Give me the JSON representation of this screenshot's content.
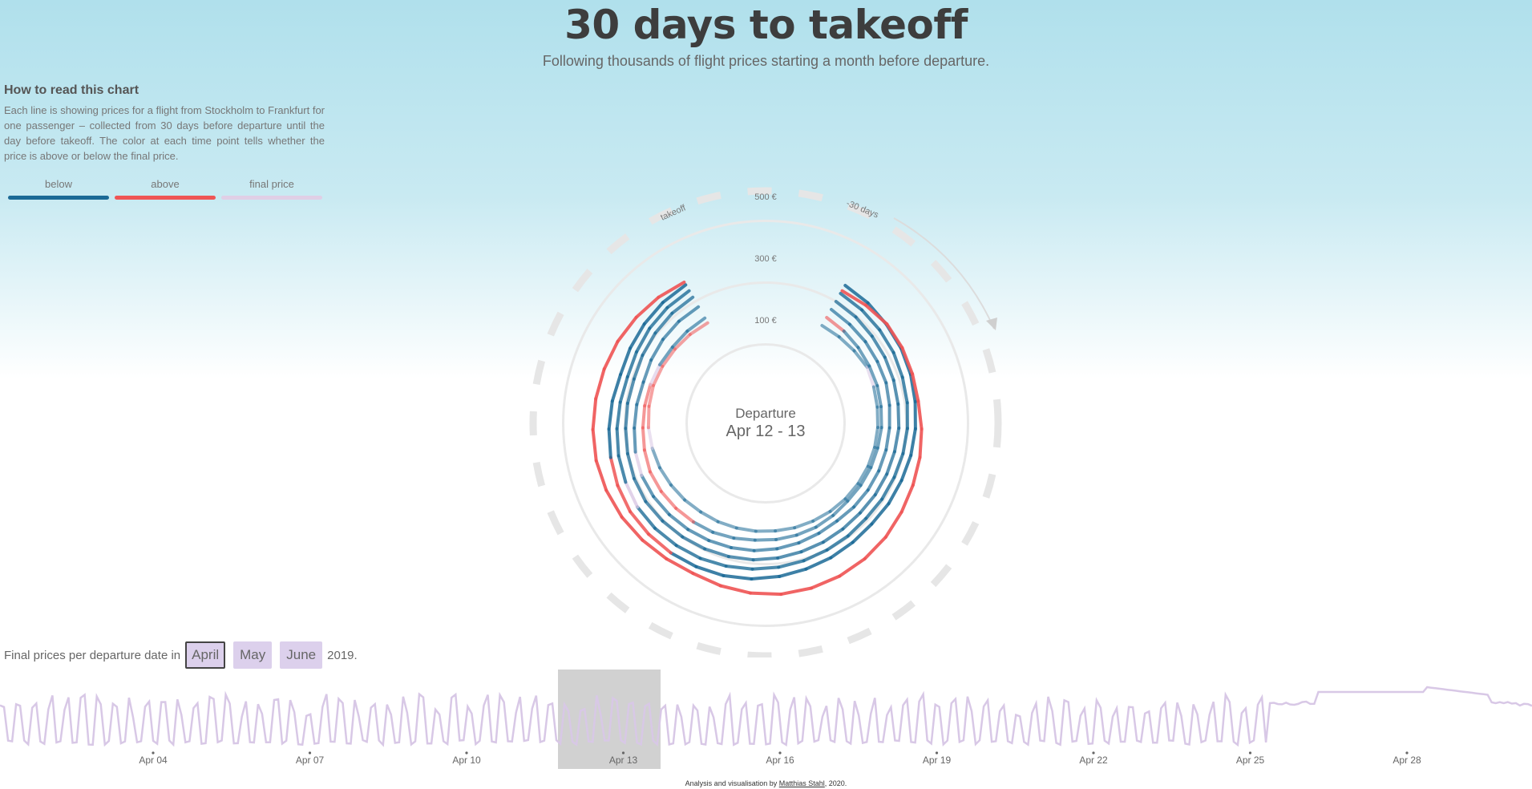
{
  "header": {
    "title": "30 days to takeoff",
    "subtitle": "Following thousands of flight prices starting a month before departure."
  },
  "howto": {
    "heading": "How to read this chart",
    "text": "Each line is showing prices for a flight from Stockholm to Frankfurt for one passenger – collected from 30 days before departure until the day before takeoff. The color at each time point tells whether the price is above or below the final price."
  },
  "legend": [
    {
      "label": "below",
      "color": "#1b6a96"
    },
    {
      "label": "above",
      "color": "#ef5555"
    },
    {
      "label": "final price",
      "color": "#e0cfe6"
    }
  ],
  "radial": {
    "departure_label": "Departure",
    "departure_dates": "Apr 12 - 13",
    "ring_labels": [
      "100 €",
      "300 €",
      "500 €"
    ],
    "start_label": "-30 days",
    "end_label": "takeoff"
  },
  "chart_data": {
    "type": "line",
    "title": "30 days to takeoff",
    "x_unit": "days before departure",
    "x_range": [
      -30,
      -1
    ],
    "y_unit": "€",
    "y_range": [
      0,
      600
    ],
    "rings": [
      100,
      300,
      500
    ],
    "series": [
      {
        "color_class": "mixed",
        "values": [
          210,
          212,
          215,
          220,
          214,
          210,
          208,
          206,
          204,
          202,
          200,
          198,
          196,
          195,
          194,
          195,
          196,
          198,
          200,
          205,
          210,
          216,
          220,
          224,
          226,
          228,
          226,
          224,
          222,
          220
        ]
      },
      {
        "color_class": "mixed",
        "values": [
          240,
          236,
          232,
          228,
          226,
          222,
          220,
          216,
          214,
          212,
          210,
          214,
          218,
          220,
          222,
          224,
          230,
          236,
          240,
          244,
          248,
          250,
          246,
          242,
          240,
          238,
          236,
          234,
          236,
          238
        ]
      },
      {
        "color_class": "mixed",
        "values": [
          270,
          265,
          262,
          258,
          256,
          250,
          246,
          244,
          242,
          240,
          238,
          236,
          240,
          246,
          252,
          258,
          262,
          266,
          270,
          274,
          278,
          280,
          276,
          270,
          266,
          262,
          268,
          274,
          278,
          280
        ]
      },
      {
        "color_class": "mixed",
        "values": [
          300,
          296,
          290,
          286,
          282,
          278,
          276,
          272,
          270,
          268,
          266,
          268,
          272,
          276,
          282,
          288,
          292,
          296,
          300,
          304,
          308,
          306,
          302,
          298,
          296,
          294,
          300,
          306,
          312,
          316
        ]
      },
      {
        "color_class": "mixed",
        "values": [
          330,
          326,
          322,
          318,
          312,
          308,
          304,
          300,
          296,
          294,
          292,
          296,
          300,
          306,
          312,
          318,
          324,
          330,
          334,
          338,
          340,
          336,
          332,
          326,
          320,
          316,
          322,
          330,
          336,
          340
        ]
      },
      {
        "color_class": "mixed",
        "values": [
          360,
          356,
          350,
          346,
          340,
          334,
          330,
          326,
          322,
          320,
          318,
          322,
          328,
          334,
          342,
          350,
          356,
          360,
          364,
          366,
          368,
          364,
          358,
          352,
          346,
          340,
          346,
          352,
          358,
          362
        ]
      },
      {
        "color_class": "above",
        "values": [
          340,
          346,
          352,
          350,
          346,
          344,
          350,
          356,
          362,
          370,
          380,
          388,
          394,
          398,
          400,
          396,
          390,
          384,
          388,
          394,
          400,
          404,
          406,
          404,
          400,
          396,
          392,
          386,
          380,
          372
        ]
      }
    ]
  },
  "calendar": {
    "prefix": "Final prices per departure date in",
    "months": [
      "April",
      "May",
      "June"
    ],
    "active_month": "April",
    "suffix": "2019.",
    "ticks": [
      "Apr 04",
      "Apr 07",
      "Apr 10",
      "Apr 13",
      "Apr 16",
      "Apr 19",
      "Apr 22",
      "Apr 25",
      "Apr 28"
    ],
    "selected_range": "Apr 12 - 13"
  },
  "credit": {
    "prefix": "Analysis and visualisation by",
    "author": "Matthias Stahl",
    "suffix": ", 2020."
  },
  "colors": {
    "below": "#1b6a96",
    "above": "#ef5555",
    "final": "#e0cfe6",
    "grid": "#e8e8e8",
    "title": "#3d3d3d"
  }
}
